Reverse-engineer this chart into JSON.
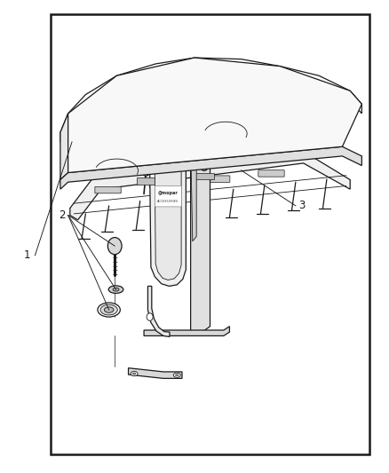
{
  "background_color": "#ffffff",
  "border_color": "#1a1a1a",
  "line_color": "#1a1a1a",
  "label_color": "#1a1a1a",
  "fig_width": 4.38,
  "fig_height": 5.33,
  "dpi": 100,
  "border": [
    0.13,
    0.04,
    0.82,
    0.93
  ],
  "label_1": [
    0.07,
    0.46
  ],
  "label_2": [
    0.175,
    0.545
  ],
  "label_3": [
    0.76,
    0.565
  ]
}
